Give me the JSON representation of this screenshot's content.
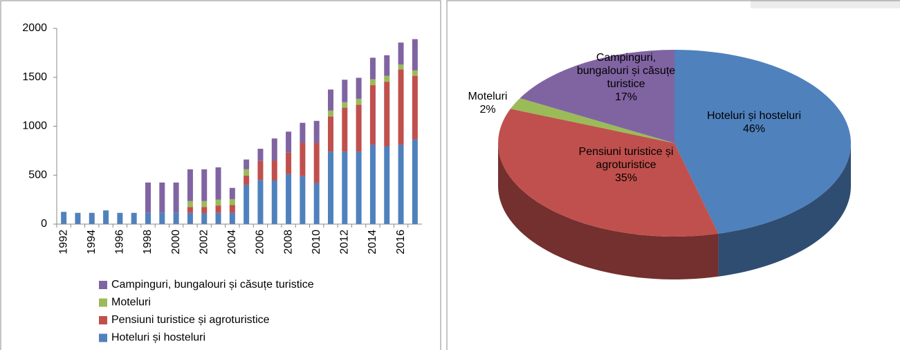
{
  "chart_data": [
    {
      "type": "bar",
      "categories": [
        "1992",
        null,
        "1994",
        null,
        "1996",
        null,
        "1998",
        null,
        "2000",
        null,
        "2002",
        null,
        "2004",
        null,
        "2006",
        null,
        "2008",
        null,
        "2010",
        null,
        "2012",
        null,
        "2014",
        null,
        "2016",
        null
      ],
      "series": [
        {
          "name": "Hoteluri și hosteluri",
          "color": "#4f81bd",
          "values": [
            125,
            115,
            115,
            140,
            115,
            115,
            115,
            115,
            115,
            115,
            110,
            115,
            115,
            400,
            450,
            445,
            510,
            490,
            420,
            740,
            740,
            740,
            810,
            795,
            810,
            865
          ]
        },
        {
          "name": "Pensiuni turistice și agroturistice",
          "color": "#c0504d",
          "values": [
            0,
            0,
            0,
            0,
            0,
            0,
            0,
            0,
            0,
            60,
            65,
            75,
            80,
            95,
            195,
            205,
            220,
            340,
            410,
            360,
            450,
            480,
            610,
            660,
            770,
            650
          ]
        },
        {
          "name": "Moteluri",
          "color": "#9bbb59",
          "values": [
            0,
            0,
            0,
            0,
            0,
            0,
            0,
            0,
            0,
            60,
            60,
            60,
            60,
            65,
            0,
            0,
            0,
            0,
            0,
            60,
            55,
            60,
            60,
            60,
            50,
            55
          ]
        },
        {
          "name": "Campinguri, bungalouri și căsuțe turistice",
          "color": "#8064a2",
          "values": [
            0,
            0,
            0,
            0,
            0,
            0,
            310,
            310,
            310,
            325,
            325,
            330,
            115,
            100,
            125,
            225,
            215,
            205,
            225,
            215,
            230,
            215,
            220,
            210,
            225,
            320
          ]
        }
      ],
      "ylim": [
        0,
        2000
      ],
      "yticks": [
        0,
        500,
        1000,
        1500,
        2000
      ],
      "grid": false
    },
    {
      "type": "pie",
      "categories": [
        "Hoteluri și hosteluri",
        "Pensiuni turistice și agroturistice",
        "Moteluri",
        "Campinguri, bungalouri și căsuțe turistice"
      ],
      "values": [
        46,
        35,
        2,
        17
      ],
      "value_labels": [
        "46%",
        "35%",
        "2%",
        "17%"
      ],
      "colors": [
        "#4f81bd",
        "#c0504d",
        "#9bbb59",
        "#8064a2"
      ]
    }
  ]
}
